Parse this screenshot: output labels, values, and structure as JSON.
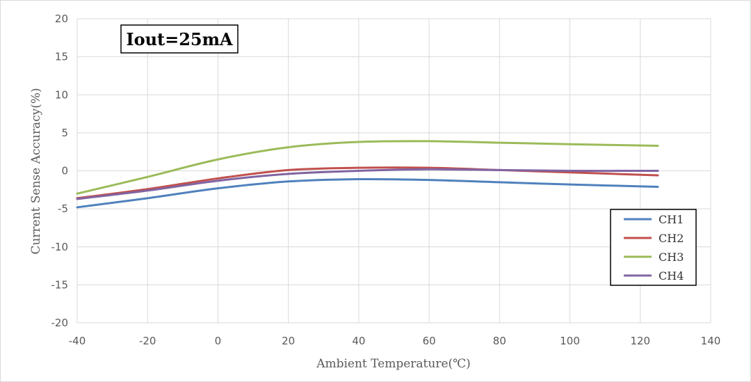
{
  "chart_data": {
    "type": "line",
    "annotation": "Iout=25mA",
    "xlabel": "Ambient Temperature(℃)",
    "ylabel": "Current Sense Accuracy(%)",
    "xlim": [
      -40,
      140
    ],
    "ylim": [
      -20,
      20
    ],
    "x_ticks": [
      -40,
      -20,
      0,
      20,
      40,
      60,
      80,
      100,
      120,
      140
    ],
    "y_ticks": [
      -20,
      -15,
      -10,
      -5,
      0,
      5,
      10,
      15,
      20
    ],
    "x_tick_labels": [
      "-40",
      "-20",
      "0",
      "20",
      "40",
      "60",
      "80",
      "100",
      "120",
      "140"
    ],
    "y_tick_labels": [
      "-20",
      "-15",
      "-10",
      "-5",
      "0",
      "5",
      "10",
      "15",
      "20"
    ],
    "grid": true,
    "legend_position": "bottom-right",
    "series": [
      {
        "name": "CH1",
        "color": "#4f81bd",
        "x": [
          -40,
          -20,
          0,
          20,
          40,
          60,
          80,
          100,
          125
        ],
        "y": [
          -4.8,
          -3.6,
          -2.3,
          -1.4,
          -1.1,
          -1.2,
          -1.5,
          -1.8,
          -2.1
        ]
      },
      {
        "name": "CH2",
        "color": "#c0504d",
        "x": [
          -40,
          -20,
          0,
          20,
          40,
          60,
          80,
          100,
          125
        ],
        "y": [
          -3.6,
          -2.4,
          -1.0,
          0.1,
          0.4,
          0.4,
          0.1,
          -0.2,
          -0.6
        ]
      },
      {
        "name": "CH3",
        "color": "#9bbb59",
        "x": [
          -40,
          -20,
          0,
          20,
          40,
          60,
          80,
          100,
          125
        ],
        "y": [
          -3.0,
          -0.8,
          1.5,
          3.1,
          3.8,
          3.9,
          3.7,
          3.5,
          3.3
        ]
      },
      {
        "name": "CH4",
        "color": "#8064a2",
        "x": [
          -40,
          -20,
          0,
          20,
          40,
          60,
          80,
          100,
          125
        ],
        "y": [
          -3.7,
          -2.6,
          -1.3,
          -0.4,
          0.0,
          0.2,
          0.1,
          0.0,
          0.0
        ]
      }
    ]
  }
}
